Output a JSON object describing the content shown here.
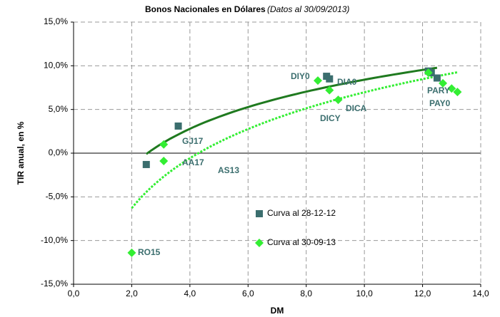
{
  "chart_data": {
    "type": "scatter",
    "title": "Bonos Nacionales en Dólares",
    "subtitle": "(Datos al 30/09/2013)",
    "x_label": "DM",
    "y_label": "TIR anual, en %",
    "xlim": [
      0,
      14
    ],
    "ylim": [
      -15,
      15
    ],
    "xticks": [
      {
        "value": 0,
        "label": "0,0"
      },
      {
        "value": 2,
        "label": "2,0"
      },
      {
        "value": 4,
        "label": "4,0"
      },
      {
        "value": 6,
        "label": "6,0"
      },
      {
        "value": 8,
        "label": "8,0"
      },
      {
        "value": 10,
        "label": "10,0"
      },
      {
        "value": 12,
        "label": "12,0"
      },
      {
        "value": 14,
        "label": "14,0"
      }
    ],
    "yticks": [
      {
        "value": -15,
        "label": "-15,0%"
      },
      {
        "value": -10,
        "label": "-10,0%"
      },
      {
        "value": -5,
        "label": "-5,0%"
      },
      {
        "value": 0,
        "label": "0,0%"
      },
      {
        "value": 5,
        "label": "5,0%"
      },
      {
        "value": 10,
        "label": "10,0%"
      },
      {
        "value": 15,
        "label": "15,0%"
      }
    ],
    "grid": true,
    "series": [
      {
        "name": "Curva al 28-12-12",
        "color": "#3b6e6e",
        "marker": "square",
        "trendline": "log",
        "trendline_color": "#1f7a1f",
        "trendline_style": "solid",
        "x": [
          2.5,
          3.6,
          8.7,
          8.8,
          12.2,
          12.3,
          12.5
        ],
        "values": [
          -1.3,
          3.1,
          8.8,
          8.5,
          9.4,
          9.2,
          8.6
        ]
      },
      {
        "name": "Curva al 30-09-13",
        "color": "#33ee33",
        "marker": "diamond",
        "trendline": "log",
        "trendline_color": "#33ee33",
        "trendline_style": "dotted",
        "x": [
          2.0,
          3.1,
          3.1,
          8.4,
          8.8,
          9.1,
          12.2,
          12.7,
          13.0,
          13.2
        ],
        "values": [
          -11.4,
          1.0,
          -0.9,
          8.3,
          7.2,
          6.1,
          9.2,
          8.0,
          7.4,
          7.0
        ]
      }
    ],
    "annotations": [
      "GJ17",
      "AA17",
      "AS13",
      "RO15",
      "DIY0",
      "DIA0",
      "DICY",
      "DICA",
      "PARY",
      "PAY0"
    ]
  }
}
